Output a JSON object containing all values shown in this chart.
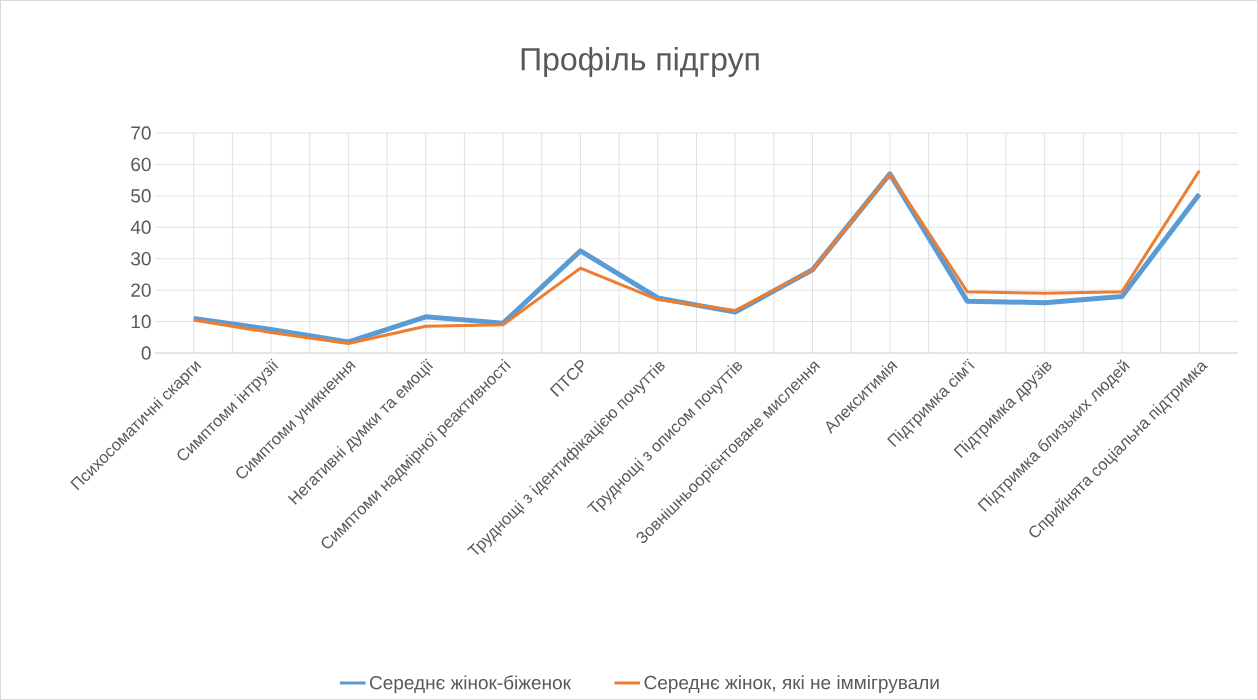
{
  "chart_data": {
    "type": "line",
    "title": "Профіль підгруп",
    "categories": [
      "Психосоматичні скарги",
      "Симптоми інтрузії",
      "Симптоми уникнення",
      "Негативні думки та емоції",
      "Симптоми надмірної реактивності",
      "ПТСР",
      "Труднощі з ідентифікацією почуттів",
      "Труднощі з описом почуттів",
      "Зовнішньоорієнтоване мислення",
      "Алекситимія",
      "Підтримка сім’ї",
      "Підтримка друзів",
      "Підтримка близьких людей",
      "Сприйнята соціальна підтримка"
    ],
    "series": [
      {
        "name": "Середнє жінок-біженок",
        "color": "#5b9bd5",
        "values": [
          11,
          7.5,
          3.5,
          11.5,
          9.5,
          32.5,
          17.5,
          13,
          26.5,
          57,
          16.5,
          16,
          18,
          50.5
        ]
      },
      {
        "name": "Середнє жінок, які не іммігрували",
        "color": "#ed7d31",
        "values": [
          10.5,
          6.5,
          3,
          8.5,
          9,
          27,
          17,
          13.5,
          26.5,
          57,
          19.5,
          19,
          19.5,
          58
        ]
      }
    ],
    "ylim": [
      0,
      70
    ],
    "yticks": [
      0,
      10,
      20,
      30,
      40,
      50,
      60,
      70
    ],
    "grid": true,
    "legend": "bottom",
    "marker": "none",
    "line_style": "solid"
  }
}
